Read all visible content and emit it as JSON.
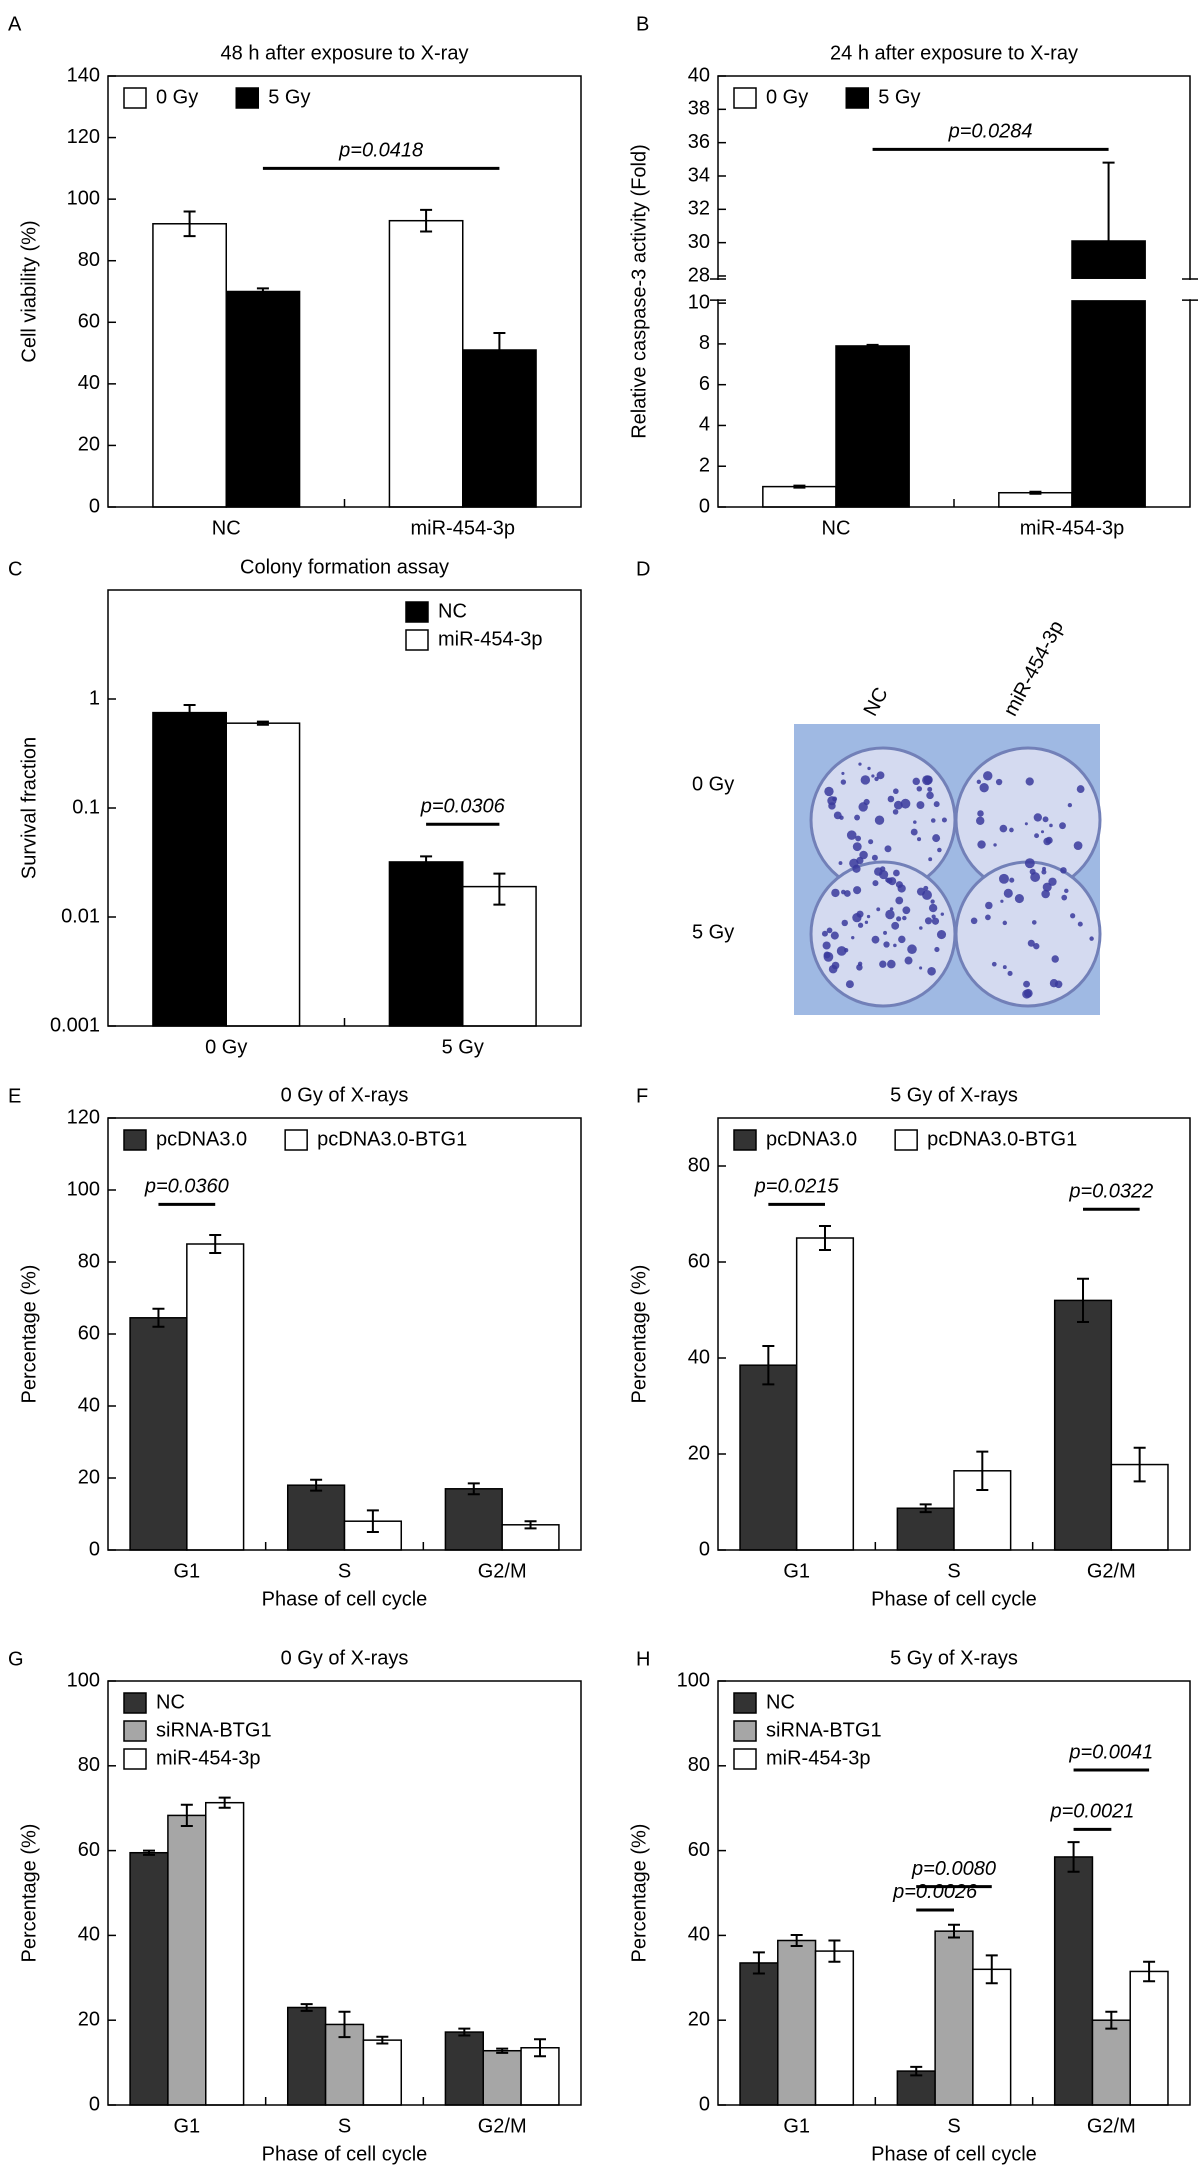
{
  "chart_data": [
    {
      "label": "A",
      "type": "bar",
      "title": "48 h after exposure to X-ray",
      "ylabel": "Cell viability (%)",
      "categories": [
        "NC",
        "miR-454-3p"
      ],
      "series": [
        {
          "name": "0 Gy",
          "color": "#ffffff",
          "values": [
            92,
            93
          ],
          "errors": [
            4,
            3.5
          ]
        },
        {
          "name": "5 Gy",
          "color": "#000000",
          "values": [
            70,
            51
          ],
          "errors": [
            1,
            5.5
          ]
        }
      ],
      "ylim": [
        0,
        140
      ],
      "yticks": [
        0,
        20,
        40,
        60,
        80,
        100,
        120,
        140
      ],
      "legend": "upper left",
      "annotations": [
        {
          "text": "p=0.0418",
          "y": 110
        }
      ]
    },
    {
      "label": "B",
      "type": "bar",
      "title": "24 h after exposure to X-ray",
      "ylabel": "Relative caspase-3 activity (Fold)",
      "categories": [
        "NC",
        "miR-454-3p"
      ],
      "series": [
        {
          "name": "0 Gy",
          "color": "#ffffff",
          "values": [
            1.0,
            0.7
          ],
          "errors": [
            0.05,
            0.05
          ]
        },
        {
          "name": "5 Gy",
          "color": "#000000",
          "values": [
            7.9,
            30.1
          ],
          "errors": [
            0.05,
            4.7
          ]
        }
      ],
      "ylim": [
        0,
        40
      ],
      "ybreak": [
        10,
        28
      ],
      "yticks": [
        0,
        2,
        4,
        6,
        8,
        10,
        28,
        30,
        32,
        34,
        36,
        38,
        40
      ],
      "legend": "upper left",
      "annotations": [
        {
          "text": "p=0.0284",
          "y": 35.6
        }
      ]
    },
    {
      "label": "C",
      "type": "bar",
      "title": "Colony formation assay",
      "ylabel": "Survival fraction",
      "categories": [
        "0 Gy",
        "5 Gy"
      ],
      "series": [
        {
          "name": "NC",
          "color": "#000000",
          "values": [
            0.75,
            0.032
          ],
          "errors": [
            0.13,
            0.004
          ]
        },
        {
          "name": "miR-454-3p",
          "color": "#ffffff",
          "values": [
            0.6,
            0.019
          ],
          "errors": [
            0.02,
            0.006
          ]
        }
      ],
      "yscale": "log",
      "ylim": [
        0.001,
        10
      ],
      "yticks": [
        0.001,
        0.01,
        0.1,
        1
      ],
      "legend": "upper right",
      "annotations": [
        {
          "text": "p=0.0306",
          "y": 0.071
        }
      ]
    },
    {
      "label": "E",
      "type": "bar",
      "title": "0 Gy of X-rays",
      "ylabel": "Percentage (%)",
      "xlabel": "Phase of cell cycle",
      "categories": [
        "G1",
        "S",
        "G2/M"
      ],
      "series": [
        {
          "name": "pcDNA3.0",
          "color": "#333333",
          "values": [
            64.5,
            18,
            17
          ],
          "errors": [
            2.5,
            1.5,
            1.5
          ]
        },
        {
          "name": "pcDNA3.0-BTG1",
          "color": "#ffffff",
          "values": [
            85,
            8,
            7
          ],
          "errors": [
            2.5,
            3,
            1
          ]
        }
      ],
      "ylim": [
        0,
        120
      ],
      "yticks": [
        0,
        20,
        40,
        60,
        80,
        100,
        120
      ],
      "legend": "upper left",
      "annotations": [
        {
          "text": "p=0.0360",
          "y": 96
        }
      ]
    },
    {
      "label": "F",
      "type": "bar",
      "title": "5 Gy of X-rays",
      "ylabel": "Percentage (%)",
      "xlabel": "Phase of cell cycle",
      "categories": [
        "G1",
        "S",
        "G2/M"
      ],
      "series": [
        {
          "name": "pcDNA3.0",
          "color": "#333333",
          "values": [
            38.5,
            8.7,
            52
          ],
          "errors": [
            4,
            0.8,
            4.5
          ]
        },
        {
          "name": "pcDNA3.0-BTG1",
          "color": "#ffffff",
          "values": [
            65,
            16.5,
            17.8
          ],
          "errors": [
            2.5,
            4,
            3.5
          ]
        }
      ],
      "ylim": [
        0,
        90
      ],
      "yticks": [
        0,
        20,
        40,
        60,
        80
      ],
      "legend": "upper left",
      "annotations": [
        {
          "text": "p=0.0215",
          "y": 72
        },
        {
          "text": "p=0.0322",
          "y": 71
        }
      ]
    },
    {
      "label": "G",
      "type": "bar",
      "title": "0 Gy of X-rays",
      "ylabel": "Percentage (%)",
      "xlabel": "Phase of cell cycle",
      "categories": [
        "G1",
        "S",
        "G2/M"
      ],
      "series": [
        {
          "name": "NC",
          "color": "#333333",
          "values": [
            59.5,
            23,
            17.2
          ],
          "errors": [
            0.5,
            0.8,
            0.8
          ]
        },
        {
          "name": "siRNA-BTG1",
          "color": "#a6a6a6",
          "values": [
            68.3,
            19,
            12.8
          ],
          "errors": [
            2.5,
            3,
            0.5
          ]
        },
        {
          "name": "miR-454-3p",
          "color": "#ffffff",
          "values": [
            71.3,
            15.3,
            13.5
          ],
          "errors": [
            1.2,
            0.8,
            2
          ]
        }
      ],
      "ylim": [
        0,
        100
      ],
      "yticks": [
        0,
        20,
        40,
        60,
        80,
        100
      ],
      "legend": "upper left"
    },
    {
      "label": "H",
      "type": "bar",
      "title": "5 Gy of X-rays",
      "ylabel": "Percentage (%)",
      "xlabel": "Phase of cell cycle",
      "categories": [
        "G1",
        "S",
        "G2/M"
      ],
      "series": [
        {
          "name": "NC",
          "color": "#333333",
          "values": [
            33.5,
            8,
            58.5
          ],
          "errors": [
            2.5,
            1,
            3.5
          ]
        },
        {
          "name": "siRNA-BTG1",
          "color": "#a6a6a6",
          "values": [
            38.8,
            41,
            20
          ],
          "errors": [
            1.3,
            1.5,
            2
          ]
        },
        {
          "name": "miR-454-3p",
          "color": "#ffffff",
          "values": [
            36.3,
            32,
            31.5
          ],
          "errors": [
            2.5,
            3.3,
            2.3
          ]
        }
      ],
      "ylim": [
        0,
        100
      ],
      "yticks": [
        0,
        20,
        40,
        60,
        80,
        100
      ],
      "legend": "upper left",
      "annotations": [
        {
          "text": "p=0.0041",
          "y": 79
        },
        {
          "text": "p=0.0021",
          "y": 65
        },
        {
          "text": "p=0.0080",
          "y": 51.5
        },
        {
          "text": "p=0.0026",
          "y": 46
        }
      ]
    }
  ],
  "panel_d": {
    "label": "D",
    "columns": [
      "NC",
      "miR-454-3p"
    ],
    "rows": [
      "0 Gy",
      "5 Gy"
    ]
  }
}
